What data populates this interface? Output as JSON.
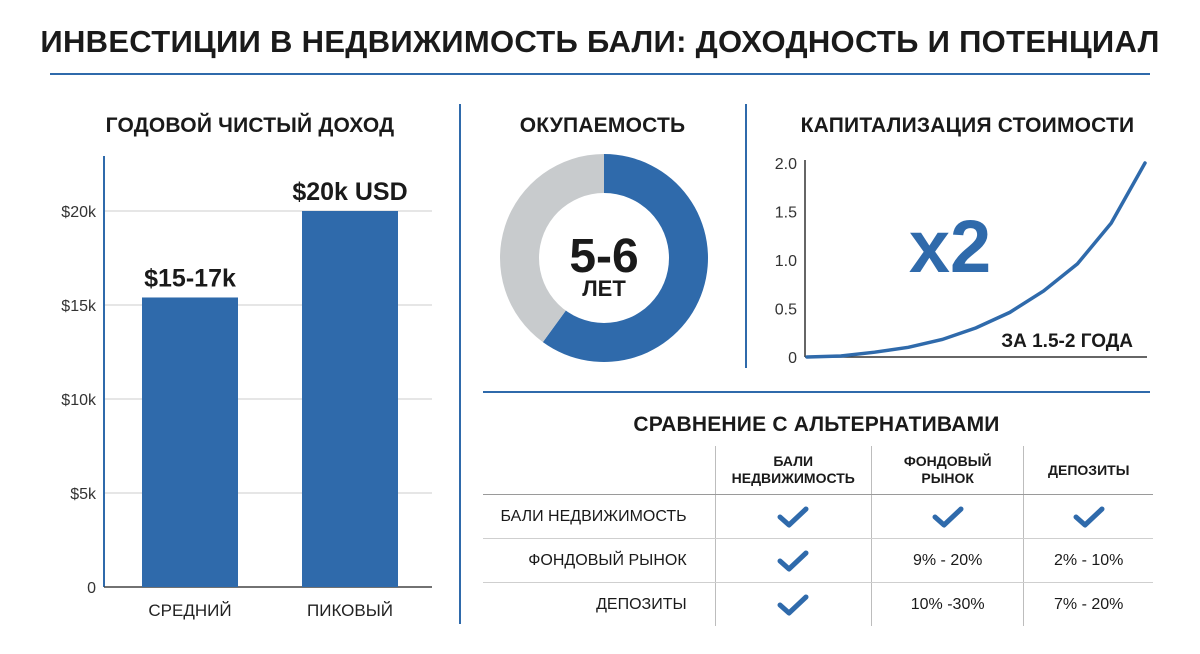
{
  "title": "ИНВЕСТИЦИИ В НЕДВИЖИМОСТЬ БАЛИ: ДОХОДНОСТЬ И ПОТЕНЦИАЛ",
  "colors": {
    "accent": "#2f6aab",
    "grey": "#c8cbcd"
  },
  "chart_data": [
    {
      "type": "bar",
      "title": "ГОДОВОЙ ЧИСТЫЙ ДОХОД",
      "categories": [
        "СРЕДНИЙ",
        "ПИКОВЫЙ"
      ],
      "values": [
        15400,
        20000
      ],
      "value_labels": [
        "$15-17k",
        "$20k USD"
      ],
      "ylim": [
        0,
        20000
      ],
      "yticks": [
        0,
        5000,
        10000,
        15000,
        20000
      ],
      "ytick_labels": [
        "0",
        "$5k",
        "$10k",
        "$15k",
        "$20k"
      ],
      "grid": true
    },
    {
      "type": "pie",
      "title": "ОКУПАЕМОСТЬ",
      "slices": [
        {
          "value": 60,
          "color": "#2f6aab"
        },
        {
          "value": 40,
          "color": "#c8cbcd"
        }
      ],
      "center_value": "5-6",
      "center_unit": "ЛЕТ"
    },
    {
      "type": "line",
      "title": "КАПИТАЛИЗАЦИЯ СТОИМОСТИ",
      "x": [
        0,
        0.1,
        0.2,
        0.3,
        0.4,
        0.5,
        0.6,
        0.7,
        0.8,
        0.9,
        1.0
      ],
      "y": [
        0,
        0.01,
        0.05,
        0.1,
        0.18,
        0.3,
        0.46,
        0.68,
        0.96,
        1.38,
        2.0
      ],
      "ylim": [
        0,
        2
      ],
      "yticks": [
        0,
        0.5,
        1.0,
        1.5,
        2.0
      ],
      "ytick_labels": [
        "0",
        "0.5",
        "1.0",
        "1.5",
        "2.0"
      ],
      "annotation_big": "x2",
      "annotation_note": "ЗА 1.5-2 ГОДА"
    },
    {
      "type": "table",
      "title": "СРАВНЕНИЕ С АЛЬТЕРНАТИВАМИ",
      "columns": [
        "БАЛИ НЕДВИЖИМОСТЬ",
        "ФОНДОВЫЙ РЫНОК",
        "ДЕПОЗИТЫ"
      ],
      "rows": [
        {
          "label": "БАЛИ НЕДВИЖИМОСТЬ",
          "cells": [
            "✓",
            "✓",
            "✓"
          ]
        },
        {
          "label": "ФОНДОВЫЙ РЫНОК",
          "cells": [
            "✓",
            "9% - 20%",
            "2% - 10%"
          ]
        },
        {
          "label": "ДЕПОЗИТЫ",
          "cells": [
            "✓",
            "10% -30%",
            "7% - 20%"
          ]
        }
      ]
    }
  ]
}
